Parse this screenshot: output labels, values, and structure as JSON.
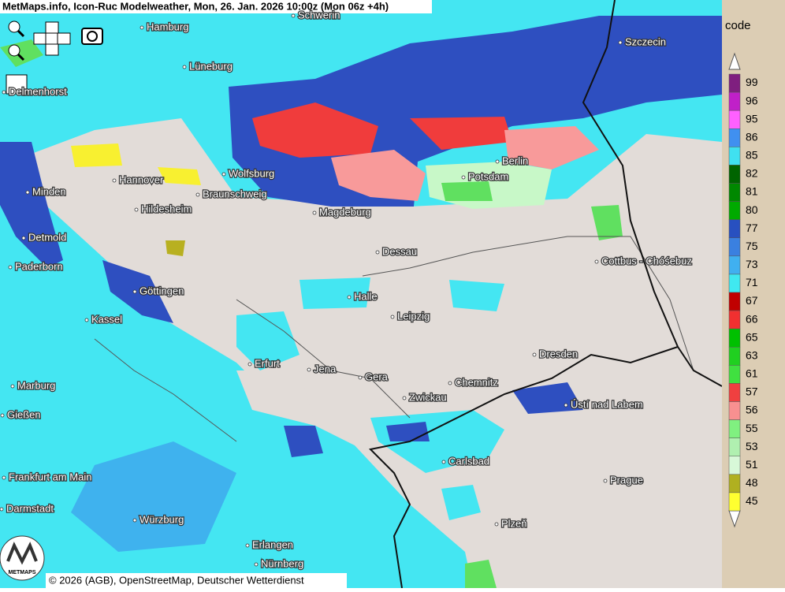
{
  "header": {
    "title": "MetMaps.info, Icon-Ruc Modelweather, Mon, 26. Jan. 2026 10:00z (Mon 06z +4h)"
  },
  "legend": {
    "title": "code",
    "values": [
      "99",
      "96",
      "95",
      "86",
      "85",
      "82",
      "81",
      "80",
      "77",
      "75",
      "73",
      "71",
      "67",
      "66",
      "65",
      "63",
      "61",
      "57",
      "56",
      "55",
      "53",
      "51",
      "48",
      "45"
    ]
  },
  "cities": [
    "Hamburg",
    "Schwerin",
    "Szczecin",
    "Lüneburg",
    "Delmenhorst",
    "Wolfsburg",
    "Hannover",
    "Berlin",
    "Potsdam",
    "Minden",
    "Braunschweig",
    "Hildesheim",
    "Magdeburg",
    "Detmold",
    "Dessau",
    "Paderborn",
    "Cottbus - Chóśebuz",
    "Göttingen",
    "Halle",
    "Kassel",
    "Leipzig",
    "Dresden",
    "Erfurt",
    "Jena",
    "Gera",
    "Marburg",
    "Chemnitz",
    "Zwickau",
    "Gießen",
    "Ústí nad Labem",
    "Carlsbad",
    "Frankfurt am Main",
    "Prague",
    "Darmstadt",
    "Würzburg",
    "Plzeň",
    "Erlangen",
    "Nürnberg"
  ],
  "footer": {
    "copyright": "© 2026 (AGB), OpenStreetMap, Deutscher Wetterdienst"
  },
  "logo": {
    "text": "METMAPS"
  }
}
